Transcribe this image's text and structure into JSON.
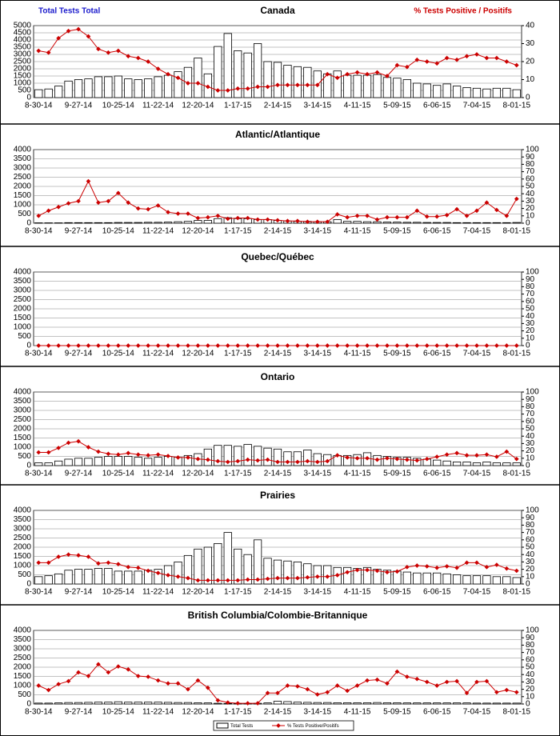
{
  "chart_data": [
    {
      "type": "bar_line",
      "title": "Canada",
      "y_label": "Total Tests Total",
      "y2_label": "% Tests Positive / Positifs",
      "categories": [
        "8-30-14",
        null,
        null,
        null,
        "9-27-14",
        null,
        null,
        null,
        "10-25-14",
        null,
        null,
        null,
        "11-22-14",
        null,
        null,
        null,
        "12-20-14",
        null,
        null,
        null,
        "1-17-15",
        null,
        null,
        null,
        "2-14-15",
        null,
        null,
        null,
        "3-14-15",
        null,
        null,
        null,
        "4-11-15",
        null,
        null,
        null,
        "5-09-15",
        null,
        null,
        null,
        "6-06-15",
        null,
        null,
        null,
        "7-04-15",
        null,
        null,
        null,
        "8-01-15"
      ],
      "ylim": [
        0,
        5000
      ],
      "yticks": [
        0,
        500,
        1000,
        1500,
        2000,
        2500,
        3000,
        3500,
        4000,
        4500,
        5000
      ],
      "y2lim": [
        0,
        40
      ],
      "y2ticks": [
        0,
        10,
        20,
        30,
        40
      ],
      "series": [
        {
          "name": "Total Tests",
          "color": "#ffffff",
          "values": [
            550,
            600,
            800,
            1150,
            1250,
            1300,
            1450,
            1450,
            1500,
            1300,
            1250,
            1300,
            1450,
            1550,
            1800,
            2100,
            2750,
            1650,
            3550,
            4450,
            3250,
            3100,
            3750,
            2500,
            2450,
            2250,
            2150,
            2100,
            1850,
            1650,
            1850,
            1550,
            1550,
            1550,
            1600,
            1400,
            1350,
            1250,
            1000,
            950,
            850,
            950,
            800,
            700,
            650,
            600,
            650,
            650,
            550
          ]
        },
        {
          "name": "% Tests Positive/Positifs",
          "color": "#cc0000",
          "axis": "y2",
          "values": [
            26,
            25,
            33,
            37,
            38,
            34,
            27,
            25,
            26,
            23,
            22,
            20,
            16,
            13,
            11,
            8,
            8,
            6,
            4,
            4,
            5,
            5,
            6,
            6,
            7,
            7,
            7,
            7,
            7,
            13,
            11,
            13,
            14,
            13,
            14,
            12,
            18,
            17,
            21,
            20,
            19,
            22,
            21,
            23,
            24,
            22,
            22,
            20,
            18
          ]
        }
      ]
    },
    {
      "type": "bar_line",
      "title": "Atlantic/Atlantique",
      "categories": [
        "8-30-14",
        null,
        null,
        null,
        "9-27-14",
        null,
        null,
        null,
        "10-25-14",
        null,
        null,
        null,
        "11-22-14",
        null,
        null,
        null,
        "12-20-14",
        null,
        null,
        null,
        "1-17-15",
        null,
        null,
        null,
        "2-14-15",
        null,
        null,
        null,
        "3-14-15",
        null,
        null,
        null,
        "4-11-15",
        null,
        null,
        null,
        "5-09-15",
        null,
        null,
        null,
        "6-06-15",
        null,
        null,
        null,
        "7-04-15",
        null,
        null,
        null,
        "8-01-15"
      ],
      "ylim": [
        0,
        4000
      ],
      "yticks": [
        0,
        500,
        1000,
        1500,
        2000,
        2500,
        3000,
        3500,
        4000
      ],
      "y2lim": [
        0,
        100
      ],
      "y2ticks": [
        0,
        10,
        20,
        30,
        40,
        50,
        60,
        70,
        80,
        90,
        100
      ],
      "series": [
        {
          "color": "#ffffff",
          "values": [
            20,
            20,
            20,
            30,
            30,
            30,
            30,
            30,
            40,
            40,
            40,
            50,
            50,
            60,
            80,
            100,
            150,
            150,
            250,
            300,
            250,
            250,
            200,
            200,
            150,
            120,
            100,
            100,
            80,
            80,
            200,
            100,
            100,
            80,
            80,
            60,
            60,
            50,
            50,
            40,
            40,
            40,
            30,
            30,
            30,
            30,
            30,
            30,
            40
          ]
        },
        {
          "color": "#cc0000",
          "axis": "y2",
          "values": [
            10,
            17,
            22,
            27,
            30,
            57,
            28,
            30,
            41,
            28,
            20,
            19,
            24,
            15,
            13,
            13,
            7,
            8,
            10,
            6,
            7,
            7,
            5,
            5,
            4,
            3,
            3,
            2,
            2,
            2,
            12,
            8,
            10,
            10,
            5,
            8,
            8,
            8,
            17,
            9,
            9,
            11,
            19,
            10,
            17,
            28,
            18,
            10,
            33
          ]
        }
      ]
    },
    {
      "type": "bar_line",
      "title": "Quebec/Québec",
      "categories": [
        "8-30-14",
        null,
        null,
        null,
        "9-27-14",
        null,
        null,
        null,
        "10-25-14",
        null,
        null,
        null,
        "11-22-14",
        null,
        null,
        null,
        "12-20-14",
        null,
        null,
        null,
        "1-17-15",
        null,
        null,
        null,
        "2-14-15",
        null,
        null,
        null,
        "3-14-15",
        null,
        null,
        null,
        "4-11-15",
        null,
        null,
        null,
        "5-09-15",
        null,
        null,
        null,
        "6-06-15",
        null,
        null,
        null,
        "7-04-15",
        null,
        null,
        null,
        "8-01-15"
      ],
      "ylim": [
        0,
        4000
      ],
      "yticks": [
        0,
        500,
        1000,
        1500,
        2000,
        2500,
        3000,
        3500,
        4000
      ],
      "y2lim": [
        0,
        100
      ],
      "y2ticks": [
        0,
        10,
        20,
        30,
        40,
        50,
        60,
        70,
        80,
        90,
        100
      ],
      "series": [
        {
          "color": "#ffffff",
          "values": [
            0,
            0,
            0,
            0,
            0,
            0,
            0,
            0,
            0,
            0,
            0,
            0,
            0,
            0,
            0,
            0,
            0,
            0,
            0,
            0,
            0,
            0,
            0,
            0,
            0,
            0,
            0,
            0,
            0,
            0,
            0,
            0,
            0,
            0,
            0,
            0,
            0,
            0,
            0,
            0,
            0,
            0,
            0,
            0,
            0,
            0,
            0,
            0,
            0
          ]
        },
        {
          "color": "#cc0000",
          "axis": "y2",
          "values": [
            0,
            0,
            0,
            0,
            0,
            0,
            0,
            0,
            0,
            0,
            0,
            0,
            0,
            0,
            0,
            0,
            0,
            0,
            0,
            0,
            0,
            0,
            0,
            0,
            0,
            0,
            0,
            0,
            0,
            0,
            0,
            0,
            0,
            0,
            0,
            0,
            0,
            0,
            0,
            0,
            0,
            0,
            0,
            0,
            0,
            0,
            0,
            0,
            0
          ]
        }
      ]
    },
    {
      "type": "bar_line",
      "title": "Ontario",
      "categories": [
        "8-30-14",
        null,
        null,
        null,
        "9-27-14",
        null,
        null,
        null,
        "10-25-14",
        null,
        null,
        null,
        "11-22-14",
        null,
        null,
        null,
        "12-20-14",
        null,
        null,
        null,
        "1-17-15",
        null,
        null,
        null,
        "2-14-15",
        null,
        null,
        null,
        "3-14-15",
        null,
        null,
        null,
        "4-11-15",
        null,
        null,
        null,
        "5-09-15",
        null,
        null,
        null,
        "6-06-15",
        null,
        null,
        null,
        "7-04-15",
        null,
        null,
        null,
        "8-01-15"
      ],
      "ylim": [
        0,
        4000
      ],
      "yticks": [
        0,
        500,
        1000,
        1500,
        2000,
        2500,
        3000,
        3500,
        4000
      ],
      "y2lim": [
        0,
        100
      ],
      "y2ticks": [
        0,
        10,
        20,
        30,
        40,
        50,
        60,
        70,
        80,
        90,
        100
      ],
      "series": [
        {
          "color": "#ffffff",
          "values": [
            150,
            150,
            250,
            350,
            400,
            400,
            450,
            500,
            500,
            500,
            450,
            400,
            450,
            500,
            450,
            550,
            650,
            900,
            1100,
            1100,
            1050,
            1150,
            1050,
            950,
            900,
            750,
            750,
            850,
            650,
            600,
            550,
            550,
            600,
            700,
            550,
            500,
            450,
            450,
            400,
            350,
            300,
            250,
            200,
            200,
            150,
            200,
            150,
            150,
            150
          ]
        },
        {
          "color": "#cc0000",
          "axis": "y2",
          "values": [
            18,
            18,
            24,
            31,
            33,
            25,
            19,
            16,
            15,
            17,
            15,
            14,
            15,
            13,
            11,
            11,
            9,
            8,
            6,
            5,
            6,
            8,
            7,
            8,
            5,
            5,
            5,
            6,
            5,
            6,
            14,
            11,
            10,
            10,
            8,
            10,
            9,
            8,
            7,
            9,
            12,
            15,
            17,
            14,
            14,
            15,
            12,
            19,
            9
          ]
        }
      ]
    },
    {
      "type": "bar_line",
      "title": "Prairies",
      "categories": [
        "8-30-14",
        null,
        null,
        null,
        "9-27-14",
        null,
        null,
        null,
        "10-25-14",
        null,
        null,
        null,
        "11-22-14",
        null,
        null,
        null,
        "12-20-14",
        null,
        null,
        null,
        "1-17-15",
        null,
        null,
        null,
        "2-14-15",
        null,
        null,
        null,
        "3-14-15",
        null,
        null,
        null,
        "4-11-15",
        null,
        null,
        null,
        "5-09-15",
        null,
        null,
        null,
        "6-06-15",
        null,
        null,
        null,
        "7-04-15",
        null,
        null,
        null,
        "8-01-15"
      ],
      "ylim": [
        0,
        4000
      ],
      "yticks": [
        0,
        500,
        1000,
        1500,
        2000,
        2500,
        3000,
        3500,
        4000
      ],
      "y2lim": [
        0,
        100
      ],
      "y2ticks": [
        0,
        10,
        20,
        30,
        40,
        50,
        60,
        70,
        80,
        90,
        100
      ],
      "series": [
        {
          "color": "#ffffff",
          "values": [
            400,
            450,
            550,
            750,
            800,
            800,
            850,
            850,
            700,
            700,
            700,
            750,
            800,
            1000,
            1200,
            1550,
            1900,
            2000,
            2200,
            2800,
            1900,
            1600,
            2400,
            1400,
            1300,
            1250,
            1200,
            1100,
            1000,
            1000,
            900,
            900,
            850,
            900,
            800,
            750,
            700,
            650,
            600,
            600,
            600,
            550,
            500,
            450,
            450,
            450,
            400,
            400,
            350
          ]
        },
        {
          "color": "#cc0000",
          "axis": "y2",
          "values": [
            29,
            29,
            37,
            40,
            39,
            37,
            28,
            29,
            27,
            23,
            22,
            18,
            15,
            12,
            10,
            8,
            5,
            5,
            5,
            5,
            5,
            6,
            6,
            7,
            8,
            8,
            8,
            9,
            10,
            10,
            12,
            16,
            19,
            19,
            18,
            16,
            17,
            23,
            25,
            24,
            22,
            24,
            22,
            29,
            29,
            23,
            26,
            21,
            18
          ]
        }
      ]
    },
    {
      "type": "bar_line",
      "title": "British Columbia/Colombie-Britannique",
      "categories": [
        "8-30-14",
        null,
        null,
        null,
        "9-27-14",
        null,
        null,
        null,
        "10-25-14",
        null,
        null,
        null,
        "11-22-14",
        null,
        null,
        null,
        "12-20-14",
        null,
        null,
        null,
        "1-17-15",
        null,
        null,
        null,
        "2-14-15",
        null,
        null,
        null,
        "3-14-15",
        null,
        null,
        null,
        "4-11-15",
        null,
        null,
        null,
        "5-09-15",
        null,
        null,
        null,
        "6-06-15",
        null,
        null,
        null,
        "7-04-15",
        null,
        null,
        null,
        "8-01-15"
      ],
      "ylim": [
        0,
        4000
      ],
      "yticks": [
        0,
        500,
        1000,
        1500,
        2000,
        2500,
        3000,
        3500,
        4000
      ],
      "y2lim": [
        0,
        100
      ],
      "y2ticks": [
        0,
        10,
        20,
        30,
        40,
        50,
        60,
        70,
        80,
        90,
        100
      ],
      "series": [
        {
          "color": "#ffffff",
          "values": [
            50,
            50,
            60,
            80,
            80,
            90,
            100,
            100,
            120,
            100,
            100,
            100,
            100,
            90,
            80,
            80,
            70,
            60,
            40,
            30,
            30,
            30,
            40,
            60,
            150,
            130,
            100,
            90,
            80,
            80,
            70,
            70,
            70,
            70,
            80,
            70,
            70,
            60,
            60,
            60,
            60,
            60,
            60,
            60,
            50,
            50,
            50,
            50,
            50
          ]
        },
        {
          "color": "#cc0000",
          "axis": "y2",
          "values": [
            25,
            19,
            27,
            31,
            43,
            38,
            54,
            43,
            51,
            47,
            38,
            37,
            32,
            28,
            28,
            20,
            32,
            22,
            5,
            2,
            1,
            1,
            1,
            15,
            15,
            25,
            24,
            20,
            13,
            16,
            25,
            18,
            25,
            32,
            33,
            28,
            44,
            37,
            34,
            30,
            25,
            30,
            31,
            15,
            30,
            31,
            16,
            19,
            16
          ]
        }
      ]
    }
  ]
}
